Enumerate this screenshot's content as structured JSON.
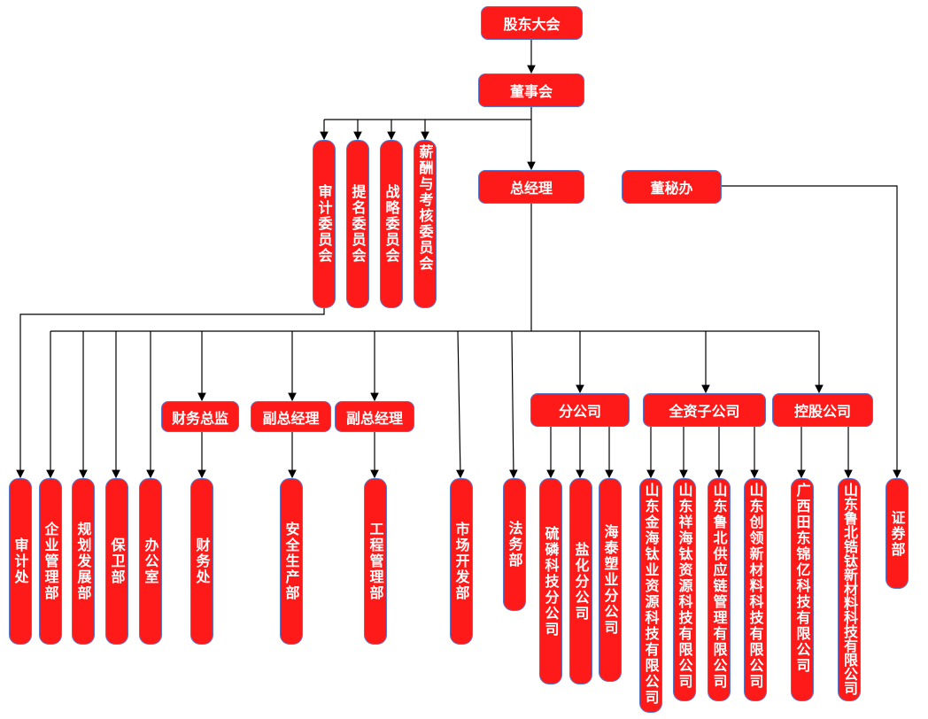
{
  "top": {
    "shareholders": "股东大会",
    "board": "董事会",
    "gm": "总经理",
    "board_secretary": "董秘办"
  },
  "committees": [
    "审计委员会",
    "提名委员会",
    "战略委员会",
    "薪酬与考核委员会"
  ],
  "mid": {
    "cfo": "财务总监",
    "vgm1": "副总经理",
    "vgm2": "副总经理",
    "branches": "分公司",
    "wholly_owned": "全资子公司",
    "holding": "控股公司"
  },
  "departments": {
    "audit": "审计处",
    "enterprise": "企业管理部",
    "planning": "规划发展部",
    "security": "保卫部",
    "office": "办公室",
    "finance": "财务处",
    "safety": "安全生产部",
    "engineering": "工程管理部",
    "market": "市场开发部",
    "legal": "法务部",
    "securities": "证券部"
  },
  "branches": [
    "硫磷科技分公司",
    "盐化分公司",
    "海泰塑业分公司"
  ],
  "wholly_owned": [
    "山东金海钛业资源科技有限公司",
    "山东祥海钛资源科技有限公司",
    "山东鲁北供应链管理有限公司",
    "山东创领新材料科技有限公司"
  ],
  "holding": [
    "广西田东锦亿科技有限公司",
    "山东鲁北锆钛新材料科技有限公司"
  ],
  "colors": {
    "box_fill": "#ff1a1a",
    "box_border": "#5577cc",
    "line": "#000000"
  }
}
